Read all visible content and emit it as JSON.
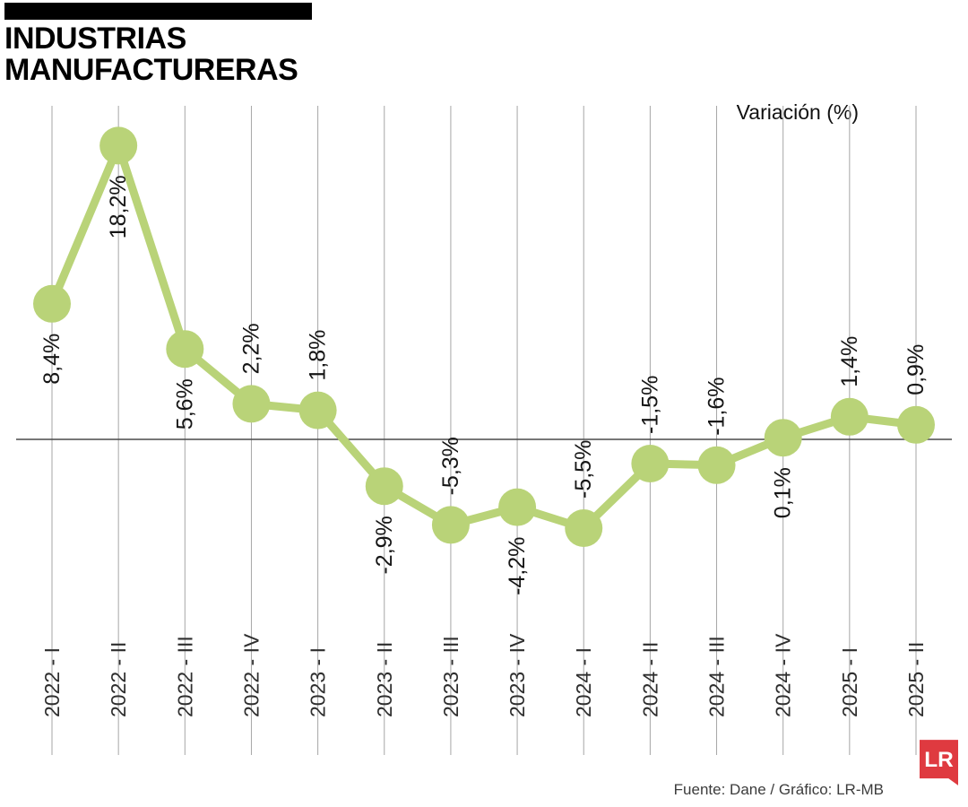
{
  "header": {
    "title": "INDUSTRIAS MANUFACTURERAS"
  },
  "footer": {
    "source": "Fuente: Dane / Gráfico: LR-MB",
    "logo_text": "LR",
    "logo_color": "#df3a40"
  },
  "chart_data": {
    "type": "line",
    "title": "INDUSTRIAS MANUFACTURERAS",
    "ylabel": "Variación (%)",
    "xlabel": "",
    "categories": [
      "2022 - I",
      "2022 - II",
      "2022 - III",
      "2022 - IV",
      "2023 - I",
      "2023 - II",
      "2023 - III",
      "2023 - IV",
      "2024 - I",
      "2024 - II",
      "2024 - III",
      "2024 - IV",
      "2025 - I",
      "2025 - II"
    ],
    "values": [
      8.4,
      18.2,
      5.6,
      2.2,
      1.8,
      -2.9,
      -5.3,
      -4.2,
      -5.5,
      -1.5,
      -1.6,
      0.1,
      1.4,
      0.9
    ],
    "labels": [
      "8,4%",
      "18,2%",
      "5,6%",
      "2,2%",
      "1,8%",
      "-2,9%",
      "-5,3%",
      "-4,2%",
      "-5,5%",
      "-1,5%",
      "-1,6%",
      "0,1%",
      "1,4%",
      "0,9%"
    ],
    "label_positions": [
      "below",
      "below",
      "below",
      "above",
      "above",
      "below",
      "above",
      "below",
      "above",
      "above",
      "above",
      "below",
      "above",
      "above"
    ],
    "ylim": [
      -8,
      20
    ],
    "grid": "vertical",
    "legend": false,
    "zero_line": true,
    "line_color": "#b9d378",
    "grid_color": "#a6a6a6",
    "zero_line_color": "#4a4a4a"
  }
}
